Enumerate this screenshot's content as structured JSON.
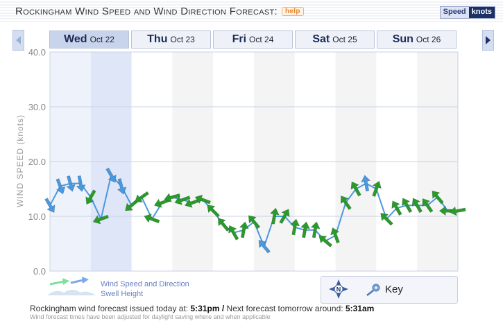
{
  "header": {
    "title": "Rockingham Wind Speed and Wind Direction Forecast:",
    "help": "help",
    "unit_label": "Speed",
    "unit_value": "knots"
  },
  "tabs": [
    {
      "dow": "Wed",
      "date": "Oct 22"
    },
    {
      "dow": "Thu",
      "date": "Oct 23"
    },
    {
      "dow": "Fri",
      "date": "Oct 24"
    },
    {
      "dow": "Sat",
      "date": "Oct 25"
    },
    {
      "dow": "Sun",
      "date": "Oct 26"
    }
  ],
  "legend": {
    "wind_label": "Wind Speed and Direction",
    "swell_label": "Swell Height"
  },
  "key": {
    "label": "Key",
    "compass_letter": "N"
  },
  "footer": {
    "issued_prefix": "Rockingham wind forecast issued today at:",
    "issued_time": "5:31pm",
    "separator": "/",
    "next_prefix": "Next forecast tomorrow around:",
    "next_time": "5:31am",
    "note": "Wind forecast times have been adjusted for daylight saving where and when applicable"
  },
  "colors": {
    "blue_arrow": "#4a98e0",
    "green_arrow": "#2a9a2a",
    "gridline": "#c9d1e6",
    "active_day_band": "#dfe6f7",
    "alt_band": "#f4f4f4"
  },
  "chart_data": {
    "type": "line",
    "ylabel": "WIND SPEED (knots)",
    "ylim": [
      0,
      40
    ],
    "yticks": [
      "0.0",
      "10.0",
      "20.0",
      "30.0",
      "40.0"
    ],
    "series": [
      {
        "values": [
          12,
          15.5,
          16,
          16,
          13.5,
          9.5,
          17.5,
          15.5,
          12,
          13.5,
          9.5,
          12.5,
          13.5,
          13,
          12.5,
          13,
          11,
          8.5,
          7,
          7.5,
          9,
          4.5,
          10,
          10,
          8,
          7.5,
          7.5,
          5.5,
          6.5,
          12.5,
          15,
          16,
          15,
          9.5,
          11.5,
          12,
          12,
          12,
          13.5,
          11,
          11
        ],
        "direction_deg": [
          60,
          70,
          75,
          80,
          120,
          160,
          60,
          75,
          140,
          145,
          200,
          160,
          165,
          160,
          160,
          200,
          225,
          230,
          240,
          280,
          230,
          230,
          280,
          300,
          280,
          280,
          280,
          220,
          250,
          235,
          240,
          260,
          290,
          225,
          240,
          240,
          240,
          235,
          230,
          180,
          170
        ],
        "arrow_colors": [
          "blue",
          "blue",
          "blue",
          "blue",
          "green",
          "green",
          "blue",
          "blue",
          "green",
          "green",
          "green",
          "green",
          "green",
          "green",
          "green",
          "green",
          "green",
          "green",
          "green",
          "green",
          "green",
          "blue",
          "green",
          "green",
          "green",
          "green",
          "green",
          "green",
          "green",
          "green",
          "green",
          "blue",
          "green",
          "green",
          "green",
          "green",
          "green",
          "green",
          "green",
          "green",
          "green"
        ]
      }
    ],
    "grid": true
  }
}
